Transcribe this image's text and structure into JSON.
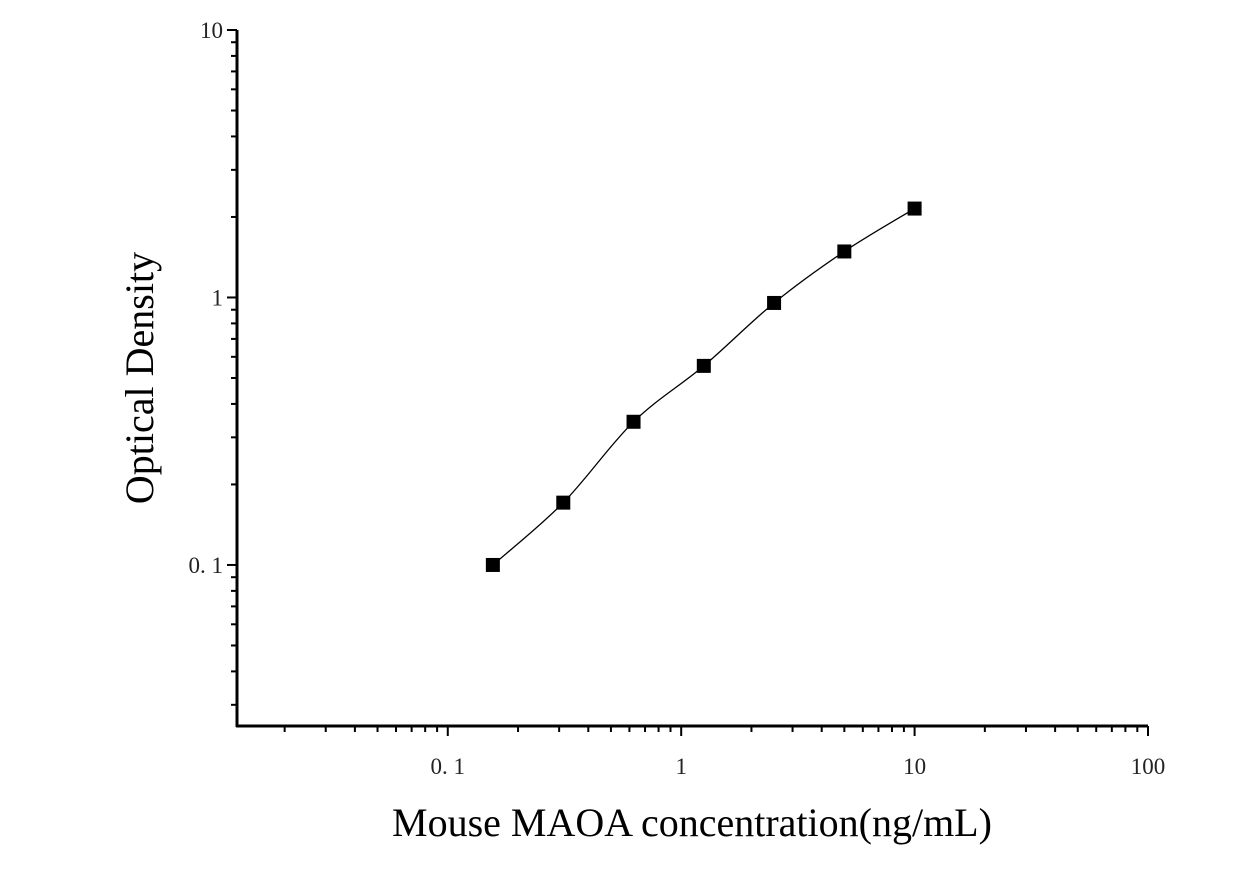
{
  "chart_data": {
    "type": "scatter",
    "x_label": "Mouse MAOA concentration(ng/mL)",
    "y_label": "Optical Density",
    "x_scale": "log",
    "y_scale": "log",
    "xlim": [
      0.0125,
      100
    ],
    "ylim": [
      0.025,
      10
    ],
    "xticks": [
      {
        "value": 0.1,
        "label": "0. 1"
      },
      1,
      10,
      100
    ],
    "yticks": [
      {
        "value": 0.1,
        "label": "0. 1"
      },
      1,
      10
    ],
    "xminor_ticks": [
      0.02,
      0.03,
      0.04,
      0.05,
      0.06,
      0.07,
      0.08,
      0.09,
      0.2,
      0.3,
      0.4,
      0.5,
      0.6,
      0.7,
      0.8,
      0.9,
      2,
      3,
      4,
      5,
      6,
      7,
      8,
      9,
      20,
      30,
      40,
      50,
      60,
      70,
      80,
      90
    ],
    "yminor_ticks": [
      0.03,
      0.04,
      0.05,
      0.06,
      0.07,
      0.08,
      0.09,
      0.2,
      0.3,
      0.4,
      0.5,
      0.6,
      0.7,
      0.8,
      0.9,
      2,
      3,
      4,
      5,
      6,
      7,
      8,
      9
    ],
    "fit_line": true,
    "series": [
      {
        "color": "#000000",
        "x": [
          0.156,
          0.3125,
          0.625,
          1.25,
          2.5,
          5,
          10
        ],
        "values": [
          0.1,
          0.171,
          0.343,
          0.555,
          0.954,
          1.486,
          2.15
        ]
      }
    ]
  }
}
